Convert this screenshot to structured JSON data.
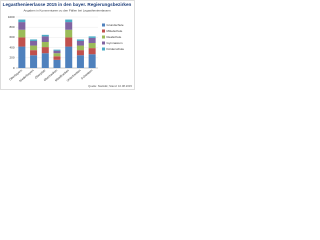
{
  "chart_data": {
    "type": "stacked_bar",
    "title": "Legasthenieerlasse 2015 in den bayer. Regierungsbezirken",
    "subtitle": "Angaben in Kommentaren zu den Fällen bei Legasthenieerlassen",
    "source": "Quelle: Statistik; Stand: 10.08.2015",
    "categories": [
      "Oberbayern",
      "Niederbayern",
      "Oberpfalz",
      "Oberfranken",
      "Mittelfranken",
      "Unterfranken",
      "Schwaben"
    ],
    "series": [
      {
        "name": "Grundschule",
        "color": "#4f81bd",
        "values": [
          420,
          250,
          290,
          160,
          420,
          250,
          270
        ]
      },
      {
        "name": "Mittelschule",
        "color": "#c0504d",
        "values": [
          180,
          100,
          120,
          70,
          180,
          100,
          120
        ]
      },
      {
        "name": "Realschule",
        "color": "#9bbb59",
        "values": [
          150,
          90,
          100,
          60,
          150,
          90,
          100
        ]
      },
      {
        "name": "Gymnasium",
        "color": "#8064a2",
        "values": [
          150,
          90,
          110,
          50,
          150,
          90,
          100
        ]
      },
      {
        "name": "Förderschule",
        "color": "#4bacc6",
        "values": [
          50,
          30,
          30,
          20,
          50,
          30,
          30
        ]
      }
    ],
    "ylim": [
      0,
      1000
    ],
    "yticks": [
      0,
      200,
      400,
      600,
      800,
      1000
    ],
    "grid": true,
    "legend": "right"
  }
}
